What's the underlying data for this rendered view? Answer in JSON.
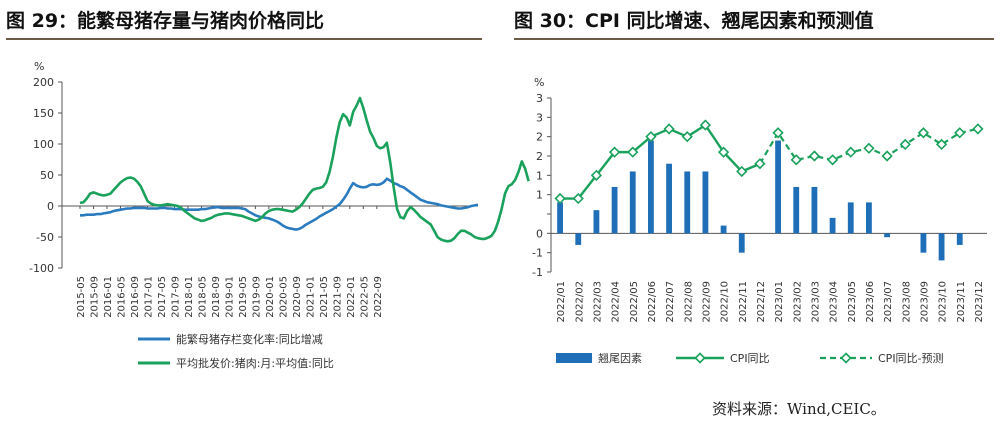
{
  "left_title": "图 29：能繁母猪存量与猪肉价格同比",
  "right_title": "图 30：CPI 同比增速、翘尾因素和预测值",
  "source_text": "资料来源：Wind,CEIC。",
  "colors": {
    "blue": "#2b7bc0",
    "green": "#1aa15b",
    "bar": "#1f6fb8",
    "dashed": "#1aa15b"
  },
  "chart_data": [
    {
      "type": "line",
      "unit_label": "%",
      "ylim": [
        -100,
        200
      ],
      "yticks": [
        200,
        150,
        100,
        50,
        0,
        -50,
        -100
      ],
      "x_ticks": [
        "2015-05",
        "2015-09",
        "2016-01",
        "2016-05",
        "2016-09",
        "2017-01",
        "2017-05",
        "2017-09",
        "2018-01",
        "2018-05",
        "2018-09",
        "2019-01",
        "2019-05",
        "2019-09",
        "2020-01",
        "2020-05",
        "2020-09",
        "2021-01",
        "2021-05",
        "2021-09",
        "2022-01",
        "2022-05",
        "2022-09"
      ],
      "grid": false,
      "legend_position": "bottom",
      "series": [
        {
          "name": "能繁母猪存栏变化率:同比增减",
          "color": "#2b7bc0",
          "values": [
            -15,
            -15,
            -14,
            -14,
            -14,
            -13,
            -13,
            -12,
            -11,
            -10,
            -8,
            -7,
            -6,
            -5,
            -4,
            -4,
            -3,
            -3,
            -3,
            -3,
            -4,
            -4,
            -4,
            -4,
            -3,
            -3,
            -4,
            -4,
            -5,
            -5,
            -5,
            -6,
            -6,
            -6,
            -6,
            -6,
            -5,
            -5,
            -4,
            -3,
            -2,
            -2,
            -3,
            -3,
            -3,
            -3,
            -3,
            -3,
            -4,
            -5,
            -9,
            -12,
            -15,
            -17,
            -18,
            -19,
            -20,
            -22,
            -24,
            -27,
            -31,
            -34,
            -36,
            -37,
            -38,
            -37,
            -34,
            -30,
            -27,
            -24,
            -21,
            -17,
            -14,
            -11,
            -8,
            -5,
            -1,
            3,
            10,
            18,
            28,
            37,
            33,
            31,
            30,
            31,
            34,
            35,
            34,
            35,
            38,
            44,
            41,
            37,
            35,
            32,
            30,
            26,
            22,
            18,
            14,
            10,
            8,
            6,
            5,
            4,
            3,
            1,
            0,
            -1,
            -2,
            -3,
            -4,
            -4,
            -3,
            -2,
            0,
            1,
            2
          ]
        },
        {
          "name": "平均批发价:猪肉:月:平均值:同比",
          "color": "#1aa15b",
          "values": [
            5,
            6,
            12,
            20,
            22,
            20,
            18,
            17,
            18,
            20,
            26,
            32,
            38,
            42,
            45,
            46,
            44,
            39,
            32,
            20,
            8,
            4,
            2,
            1,
            1,
            2,
            3,
            2,
            1,
            0,
            -3,
            -8,
            -12,
            -16,
            -20,
            -22,
            -24,
            -23,
            -21,
            -19,
            -16,
            -14,
            -13,
            -12,
            -12,
            -13,
            -14,
            -15,
            -16,
            -18,
            -20,
            -22,
            -24,
            -22,
            -18,
            -12,
            -8,
            -6,
            -5,
            -5,
            -6,
            -7,
            -8,
            -9,
            -6,
            -2,
            4,
            12,
            20,
            26,
            28,
            29,
            31,
            38,
            55,
            80,
            110,
            135,
            148,
            143,
            130,
            152,
            162,
            174,
            158,
            138,
            120,
            110,
            97,
            93,
            95,
            102,
            70,
            30,
            -5,
            -18,
            -20,
            -8,
            -2,
            -6,
            -12,
            -18,
            -22,
            -26,
            -30,
            -40,
            -50,
            -54,
            -56,
            -57,
            -56,
            -52,
            -45,
            -40,
            -40,
            -43,
            -46,
            -50,
            -52,
            -53,
            -53,
            -51,
            -48,
            -40,
            -25,
            -5,
            20,
            32,
            35,
            42,
            55,
            72,
            60,
            40
          ]
        }
      ]
    },
    {
      "type": "bar_line",
      "unit_label": "%",
      "ylim": [
        -1,
        3.5
      ],
      "yticks": [
        "3",
        "3",
        "2",
        "2",
        "1",
        "1",
        "0",
        "-1",
        "-1"
      ],
      "categories": [
        "2022/01",
        "2022/02",
        "2022/03",
        "2022/04",
        "2022/05",
        "2022/06",
        "2022/07",
        "2022/08",
        "2022/09",
        "2022/10",
        "2022/11",
        "2022/12",
        "2023/01",
        "2023/02",
        "2023/03",
        "2023/04",
        "2023/05",
        "2023/06",
        "2023/07",
        "2023/08",
        "2023/09",
        "2023/10",
        "2023/11",
        "2023/12"
      ],
      "grid": false,
      "legend_position": "bottom",
      "bars": {
        "name": "翘尾因素",
        "values": [
          0.8,
          -0.3,
          0.6,
          1.2,
          1.6,
          2.4,
          1.8,
          1.6,
          1.6,
          0.2,
          -0.5,
          0,
          2.4,
          1.2,
          1.2,
          0.4,
          0.8,
          0.8,
          -0.1,
          0,
          -0.5,
          -0.7,
          -0.3,
          0
        ]
      },
      "cpi": {
        "name": "CPI同比",
        "values": [
          0.9,
          0.9,
          1.5,
          2.1,
          2.1,
          2.5,
          2.7,
          2.5,
          2.8,
          2.1,
          1.6,
          1.8
        ]
      },
      "forecast": {
        "name": "CPI同比-预测",
        "values": [
          null,
          null,
          null,
          null,
          null,
          null,
          null,
          null,
          null,
          null,
          null,
          1.8,
          2.6,
          1.9,
          2.0,
          1.9,
          2.1,
          2.2,
          2.0,
          2.3,
          2.6,
          2.3,
          2.6,
          2.7
        ]
      }
    }
  ]
}
